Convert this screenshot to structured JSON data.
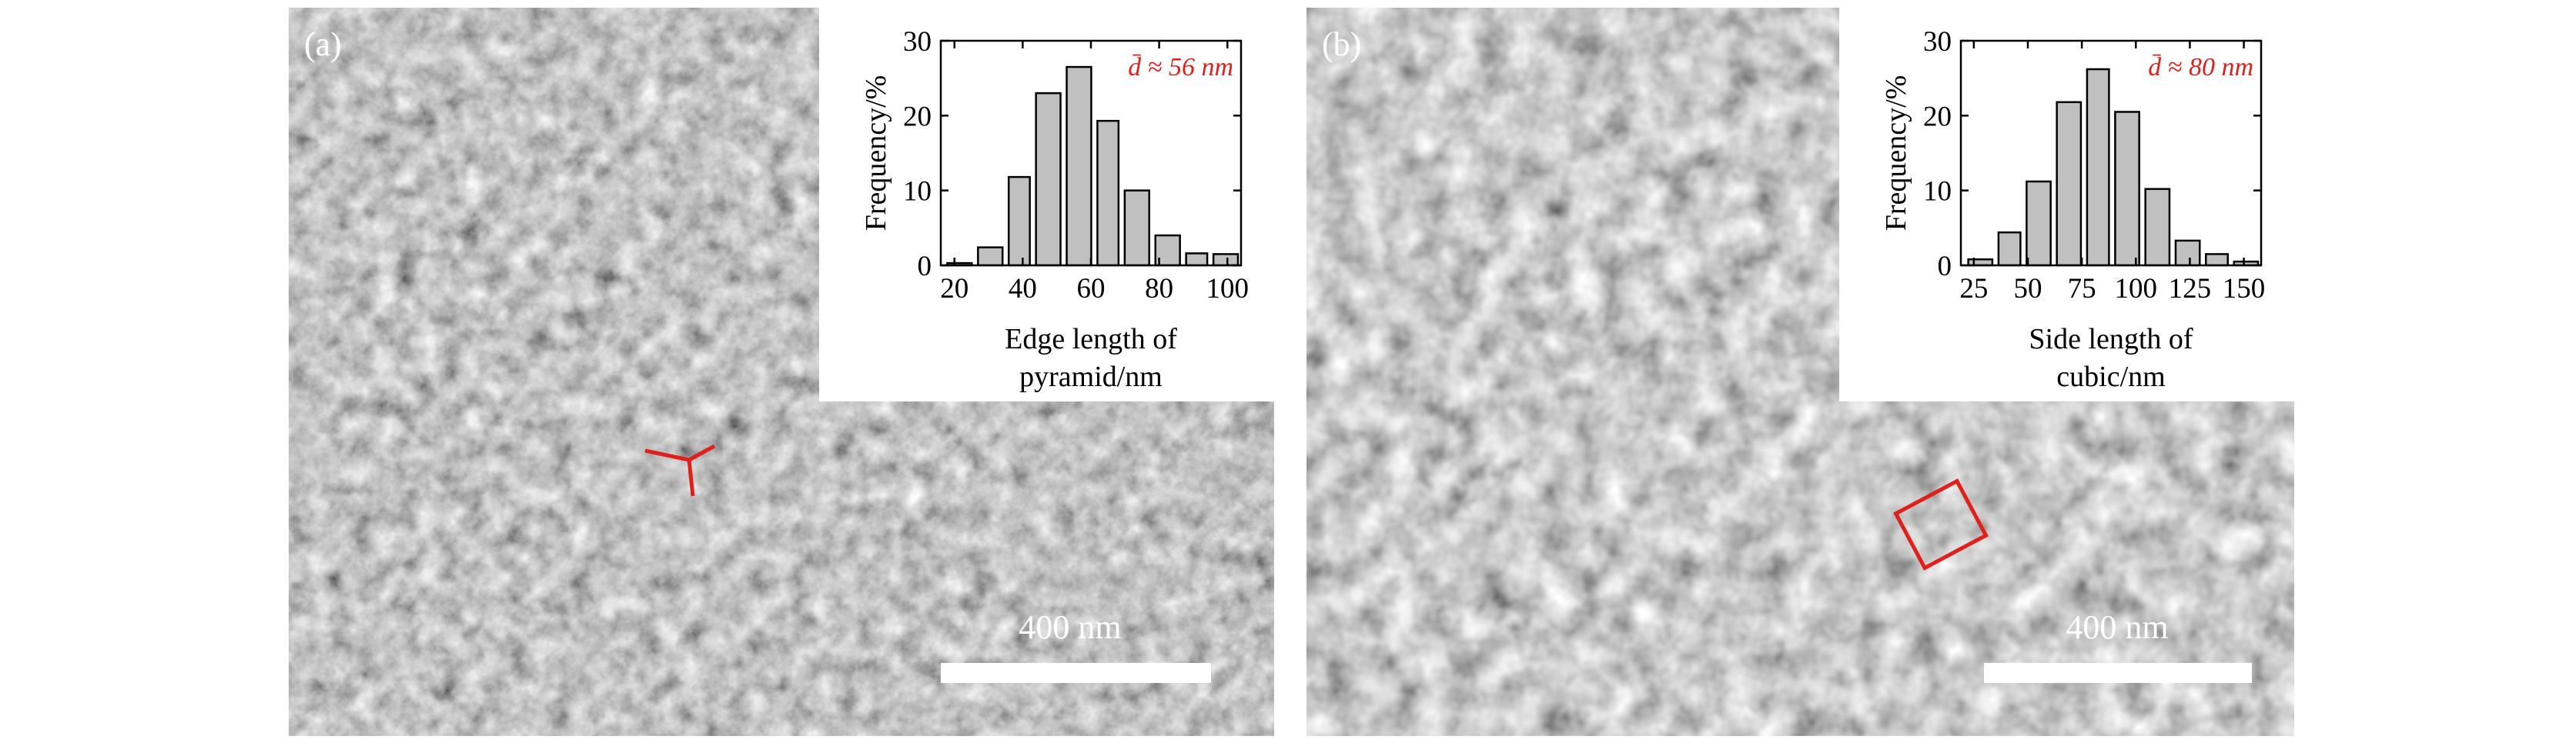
{
  "panels": [
    {
      "label": "(a)",
      "scale_bar": "400 nm"
    },
    {
      "label": "(b)",
      "scale_bar": "400 nm"
    }
  ],
  "chart_data": [
    {
      "type": "histogram",
      "y_label": "Frequency/%",
      "x_label": [
        "Edge length of",
        "pyramid/nm"
      ],
      "annotation": "d̄ ≈ 56 nm",
      "annotation_color": "#e0201b",
      "bins": [
        17,
        26,
        35,
        43,
        52,
        61,
        69,
        78,
        87,
        95,
        104
      ],
      "values": [
        0.3,
        2.4,
        11.8,
        23,
        26.5,
        19.3,
        10,
        4,
        1.6,
        1.5
      ],
      "color": "#c0c0c0",
      "xlim": [
        16,
        104
      ],
      "xticks": [
        20,
        40,
        60,
        80,
        100
      ],
      "ylim": [
        0,
        30
      ],
      "yticks": [
        0,
        10,
        20,
        30
      ]
    },
    {
      "type": "histogram",
      "y_label": "Frequency/%",
      "x_label": [
        "Side length of",
        "cubic/nm"
      ],
      "annotation": "d̄ ≈ 80 nm",
      "annotation_color": "#e0201b",
      "bins": [
        21,
        35,
        48,
        62,
        76,
        89,
        103,
        117,
        131,
        144,
        158
      ],
      "values": [
        0.8,
        4.4,
        11.2,
        21.8,
        26.2,
        20.5,
        10.2,
        3.3,
        1.5,
        0.5
      ],
      "color": "#c0c0c0",
      "xlim": [
        19,
        158
      ],
      "xticks": [
        25,
        50,
        75,
        100,
        125,
        150
      ],
      "ylim": [
        0,
        30
      ],
      "yticks": [
        0,
        10,
        20,
        30
      ]
    }
  ]
}
